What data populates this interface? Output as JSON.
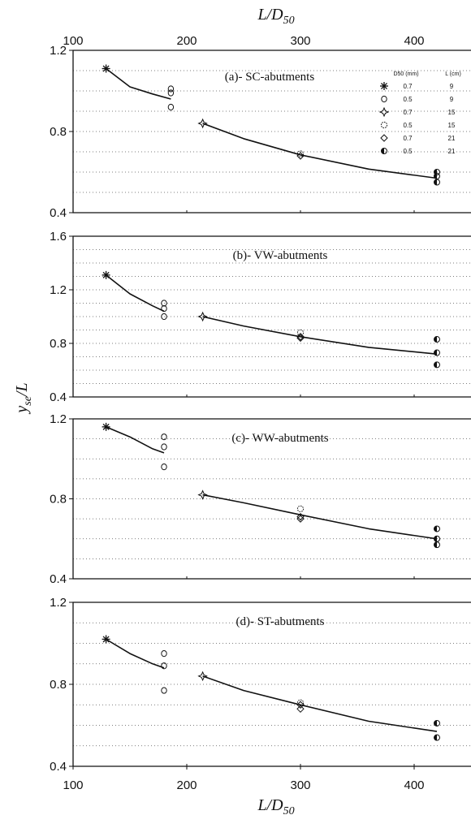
{
  "x_axis_label": "L/D50",
  "y_axis_label": "yse/L",
  "legend": {
    "headers": [
      "D50 (mm)",
      "L (cm)"
    ],
    "rows": [
      {
        "marker": "asterisk",
        "d50": "0.7",
        "L": "9"
      },
      {
        "marker": "circle",
        "d50": "0.5",
        "L": "9"
      },
      {
        "marker": "star4",
        "d50": "0.7",
        "L": "15"
      },
      {
        "marker": "dotted-circle",
        "d50": "0.5",
        "L": "15"
      },
      {
        "marker": "diamond",
        "d50": "0.7",
        "L": "21"
      },
      {
        "marker": "half-circle",
        "d50": "0.5",
        "L": "21"
      }
    ]
  },
  "chart_data": [
    {
      "type": "scatter",
      "title": "(a)- SC-abutments",
      "xlim": [
        100,
        450
      ],
      "ylim": [
        0.4,
        1.2
      ],
      "x_ticks": [
        100,
        200,
        300,
        400
      ],
      "y_ticks": [
        0.4,
        0.8,
        1.2
      ],
      "points": [
        {
          "x": 129,
          "y": 1.11,
          "marker": "asterisk"
        },
        {
          "x": 186,
          "y": 1.01,
          "marker": "circle"
        },
        {
          "x": 186,
          "y": 0.99,
          "marker": "circle"
        },
        {
          "x": 186,
          "y": 0.92,
          "marker": "circle"
        },
        {
          "x": 214,
          "y": 0.84,
          "marker": "star4"
        },
        {
          "x": 300,
          "y": 0.69,
          "marker": "dotted-circle"
        },
        {
          "x": 300,
          "y": 0.68,
          "marker": "diamond"
        },
        {
          "x": 420,
          "y": 0.6,
          "marker": "half-circle"
        },
        {
          "x": 420,
          "y": 0.58,
          "marker": "half-circle"
        },
        {
          "x": 420,
          "y": 0.55,
          "marker": "half-circle"
        }
      ],
      "fits": [
        [
          [
            129,
            1.11
          ],
          [
            150,
            1.02
          ],
          [
            170,
            0.985
          ],
          [
            186,
            0.96
          ]
        ],
        [
          [
            214,
            0.84
          ],
          [
            250,
            0.765
          ],
          [
            300,
            0.685
          ],
          [
            360,
            0.615
          ],
          [
            420,
            0.57
          ]
        ]
      ]
    },
    {
      "type": "scatter",
      "title": "(b)- VW-abutments",
      "xlim": [
        100,
        450
      ],
      "ylim": [
        0.4,
        1.6
      ],
      "x_ticks": [],
      "y_ticks": [
        0.4,
        0.8,
        1.2,
        1.6
      ],
      "points": [
        {
          "x": 129,
          "y": 1.31,
          "marker": "asterisk"
        },
        {
          "x": 180,
          "y": 1.1,
          "marker": "circle"
        },
        {
          "x": 180,
          "y": 1.06,
          "marker": "circle"
        },
        {
          "x": 180,
          "y": 1.0,
          "marker": "circle"
        },
        {
          "x": 214,
          "y": 1.0,
          "marker": "star4"
        },
        {
          "x": 300,
          "y": 0.88,
          "marker": "dotted-circle"
        },
        {
          "x": 300,
          "y": 0.85,
          "marker": "diamond"
        },
        {
          "x": 300,
          "y": 0.84,
          "marker": "diamond"
        },
        {
          "x": 420,
          "y": 0.83,
          "marker": "half-circle"
        },
        {
          "x": 420,
          "y": 0.73,
          "marker": "half-circle"
        },
        {
          "x": 420,
          "y": 0.64,
          "marker": "half-circle"
        }
      ],
      "fits": [
        [
          [
            129,
            1.31
          ],
          [
            150,
            1.17
          ],
          [
            170,
            1.08
          ],
          [
            180,
            1.04
          ]
        ],
        [
          [
            214,
            1.0
          ],
          [
            250,
            0.93
          ],
          [
            300,
            0.85
          ],
          [
            360,
            0.77
          ],
          [
            420,
            0.72
          ]
        ]
      ]
    },
    {
      "type": "scatter",
      "title": "(c)- WW-abutments",
      "xlim": [
        100,
        450
      ],
      "ylim": [
        0.4,
        1.2
      ],
      "x_ticks": [],
      "y_ticks": [
        0.4,
        0.8,
        1.2
      ],
      "points": [
        {
          "x": 129,
          "y": 1.16,
          "marker": "asterisk"
        },
        {
          "x": 180,
          "y": 1.11,
          "marker": "circle"
        },
        {
          "x": 180,
          "y": 1.06,
          "marker": "circle"
        },
        {
          "x": 180,
          "y": 0.96,
          "marker": "circle"
        },
        {
          "x": 214,
          "y": 0.82,
          "marker": "star4"
        },
        {
          "x": 300,
          "y": 0.75,
          "marker": "dotted-circle"
        },
        {
          "x": 300,
          "y": 0.71,
          "marker": "diamond"
        },
        {
          "x": 300,
          "y": 0.7,
          "marker": "diamond"
        },
        {
          "x": 420,
          "y": 0.65,
          "marker": "half-circle"
        },
        {
          "x": 420,
          "y": 0.6,
          "marker": "half-circle"
        },
        {
          "x": 420,
          "y": 0.57,
          "marker": "half-circle"
        }
      ],
      "fits": [
        [
          [
            129,
            1.16
          ],
          [
            150,
            1.11
          ],
          [
            170,
            1.05
          ],
          [
            180,
            1.03
          ]
        ],
        [
          [
            214,
            0.82
          ],
          [
            250,
            0.78
          ],
          [
            300,
            0.72
          ],
          [
            360,
            0.65
          ],
          [
            420,
            0.6
          ]
        ]
      ]
    },
    {
      "type": "scatter",
      "title": "(d)- ST-abutments",
      "xlim": [
        100,
        450
      ],
      "ylim": [
        0.4,
        1.2
      ],
      "x_ticks": [
        100,
        200,
        300,
        400
      ],
      "y_ticks": [
        0.4,
        0.8,
        1.2
      ],
      "points": [
        {
          "x": 129,
          "y": 1.02,
          "marker": "asterisk"
        },
        {
          "x": 180,
          "y": 0.95,
          "marker": "circle"
        },
        {
          "x": 180,
          "y": 0.89,
          "marker": "circle"
        },
        {
          "x": 180,
          "y": 0.77,
          "marker": "circle"
        },
        {
          "x": 214,
          "y": 0.84,
          "marker": "star4"
        },
        {
          "x": 300,
          "y": 0.71,
          "marker": "dotted-circle"
        },
        {
          "x": 300,
          "y": 0.7,
          "marker": "diamond"
        },
        {
          "x": 300,
          "y": 0.68,
          "marker": "diamond"
        },
        {
          "x": 420,
          "y": 0.61,
          "marker": "half-circle"
        },
        {
          "x": 420,
          "y": 0.54,
          "marker": "half-circle"
        }
      ],
      "fits": [
        [
          [
            129,
            1.02
          ],
          [
            150,
            0.95
          ],
          [
            170,
            0.9
          ],
          [
            180,
            0.88
          ]
        ],
        [
          [
            214,
            0.84
          ],
          [
            250,
            0.77
          ],
          [
            300,
            0.7
          ],
          [
            360,
            0.62
          ],
          [
            420,
            0.57
          ]
        ]
      ]
    }
  ]
}
